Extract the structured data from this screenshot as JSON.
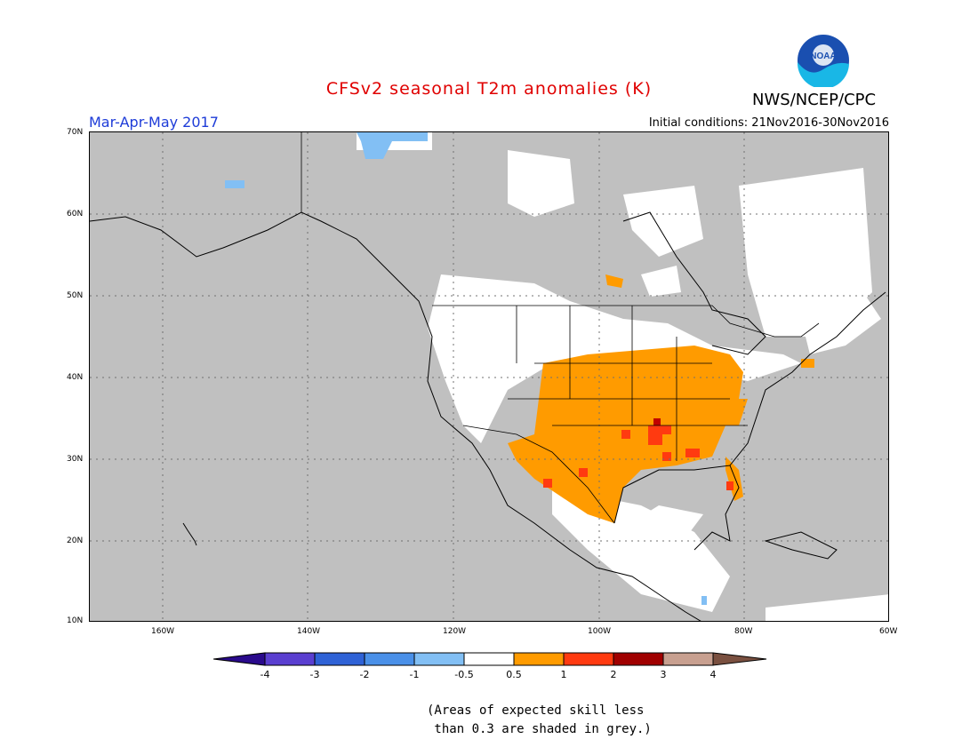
{
  "header": {
    "title": "CFSv2 seasonal T2m anomalies (K)",
    "org": "NWS/NCEP/CPC",
    "season": "Mar-Apr-May 2017",
    "initial_conditions": "Initial conditions: 21Nov2016-30Nov2016",
    "logo_text": "NOAA"
  },
  "axes": {
    "lat_labels": [
      "70N",
      "60N",
      "50N",
      "40N",
      "30N",
      "20N",
      "10N"
    ],
    "lon_labels": [
      "160W",
      "140W",
      "120W",
      "100W",
      "80W",
      "60W"
    ]
  },
  "legend": {
    "ticks": [
      "-4",
      "-3",
      "-2",
      "-1",
      "-0.5",
      "0.5",
      "1",
      "2",
      "3",
      "4"
    ],
    "colors": [
      "#2a0a8c",
      "#5a3fd0",
      "#2f62d6",
      "#4a90e8",
      "#82bff4",
      "#ffffff",
      "#ff9b00",
      "#ff3a10",
      "#a00000",
      "#c8a090",
      "#7a5040"
    ]
  },
  "colors": {
    "masked_grey": "#c0c0c0",
    "anomaly_orange": "#ff9b00",
    "anomaly_red": "#ff3a10",
    "anomaly_darkred": "#c00000",
    "cool_blue": "#82bff4"
  },
  "note": {
    "line1": "(Areas of expected skill less",
    "line2": " than 0.3 are shaded in grey.)"
  }
}
